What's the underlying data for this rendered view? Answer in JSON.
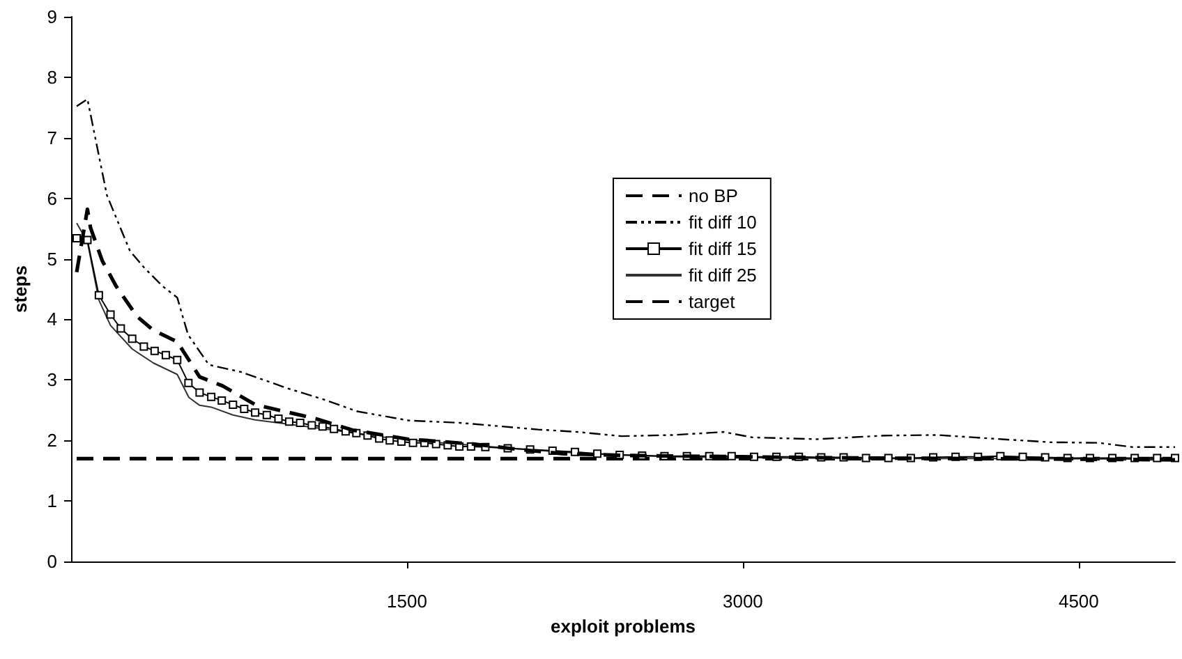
{
  "chart_data": {
    "type": "line",
    "xlabel": "exploit problems",
    "ylabel": "steps",
    "xlim": [
      0,
      4930
    ],
    "ylim": [
      0,
      9
    ],
    "xticks": [
      1500,
      3000,
      4500
    ],
    "yticks": [
      0,
      1,
      2,
      3,
      4,
      5,
      6,
      7,
      8,
      9
    ],
    "grid": false,
    "legend": "top right",
    "series": [
      {
        "name": "no BP",
        "color": "#000000",
        "line_style": "dashed",
        "marker": "none",
        "x": [
          25,
          73,
          87,
          139,
          201,
          294,
          367,
          474,
          574,
          677,
          822,
          1092,
          1258,
          1506,
          1796,
          2000,
          2200,
          2500,
          3000,
          3500,
          4000,
          4500,
          4930
        ],
        "values": [
          4.78,
          5.82,
          5.51,
          4.97,
          4.55,
          4.05,
          3.82,
          3.63,
          3.05,
          2.9,
          2.59,
          2.36,
          2.17,
          2.02,
          1.94,
          1.85,
          1.78,
          1.75,
          1.73,
          1.71,
          1.7,
          1.69,
          1.68
        ]
      },
      {
        "name": "fit diff 10",
        "color": "#000000",
        "line_style": "dashdot",
        "marker": "none",
        "x": [
          25,
          73,
          160,
          263,
          325,
          408,
          474,
          522,
          615,
          760,
          967,
          1133,
          1278,
          1506,
          1738,
          2086,
          2260,
          2459,
          2694,
          2913,
          3043,
          3329,
          3633,
          3869,
          4155,
          4373,
          4590,
          4739,
          4930
        ],
        "values": [
          7.52,
          7.64,
          6.05,
          5.13,
          4.86,
          4.55,
          4.36,
          3.75,
          3.25,
          3.13,
          2.86,
          2.67,
          2.48,
          2.33,
          2.29,
          2.18,
          2.14,
          2.07,
          2.09,
          2.14,
          2.05,
          2.02,
          2.08,
          2.09,
          2.02,
          1.97,
          1.96,
          1.89,
          1.89
        ]
      },
      {
        "name": "fit diff 15",
        "color": "#000000",
        "line_style": "solid",
        "marker": "square",
        "x": [
          25,
          73,
          124,
          176,
          222,
          273,
          325,
          373,
          423,
          474,
          524,
          574,
          626,
          673,
          723,
          773,
          822,
          874,
          926,
          974,
          1023,
          1075,
          1123,
          1174,
          1226,
          1274,
          1324,
          1376,
          1423,
          1475,
          1527,
          1578,
          1630,
          1682,
          1734,
          1786,
          1850,
          1950,
          2050,
          2150,
          2250,
          2350,
          2450,
          2550,
          2650,
          2750,
          2850,
          2950,
          3050,
          3150,
          3250,
          3350,
          3450,
          3550,
          3650,
          3750,
          3850,
          3950,
          4050,
          4150,
          4250,
          4350,
          4450,
          4550,
          4650,
          4750,
          4850,
          4930
        ],
        "values": [
          5.34,
          5.31,
          4.4,
          4.08,
          3.85,
          3.68,
          3.55,
          3.48,
          3.41,
          3.33,
          2.95,
          2.79,
          2.72,
          2.66,
          2.59,
          2.52,
          2.46,
          2.42,
          2.36,
          2.31,
          2.29,
          2.25,
          2.23,
          2.19,
          2.15,
          2.12,
          2.08,
          2.03,
          2.0,
          1.98,
          1.96,
          1.96,
          1.94,
          1.92,
          1.9,
          1.9,
          1.89,
          1.87,
          1.85,
          1.83,
          1.81,
          1.78,
          1.76,
          1.75,
          1.74,
          1.74,
          1.74,
          1.74,
          1.73,
          1.73,
          1.73,
          1.72,
          1.72,
          1.71,
          1.71,
          1.71,
          1.72,
          1.73,
          1.73,
          1.74,
          1.73,
          1.72,
          1.71,
          1.71,
          1.71,
          1.71,
          1.71,
          1.71
        ]
      },
      {
        "name": "fit diff 25",
        "color": "#333333",
        "line_style": "solid",
        "marker": "none",
        "x": [
          25,
          73,
          124,
          176,
          273,
          367,
          474,
          526,
          574,
          626,
          723,
          822,
          967,
          1174,
          1381,
          1588,
          1796,
          2000,
          2300,
          2700,
          3200,
          3700,
          4200,
          4930
        ],
        "values": [
          5.59,
          5.28,
          4.32,
          3.9,
          3.51,
          3.28,
          3.09,
          2.71,
          2.58,
          2.55,
          2.42,
          2.34,
          2.27,
          2.17,
          2.06,
          1.98,
          1.92,
          1.86,
          1.78,
          1.73,
          1.71,
          1.7,
          1.7,
          1.69
        ]
      },
      {
        "name": "target",
        "color": "#000000",
        "line_style": "dashed",
        "marker": "none",
        "x": [
          25,
          4930
        ],
        "values": [
          1.7,
          1.7
        ]
      }
    ]
  }
}
